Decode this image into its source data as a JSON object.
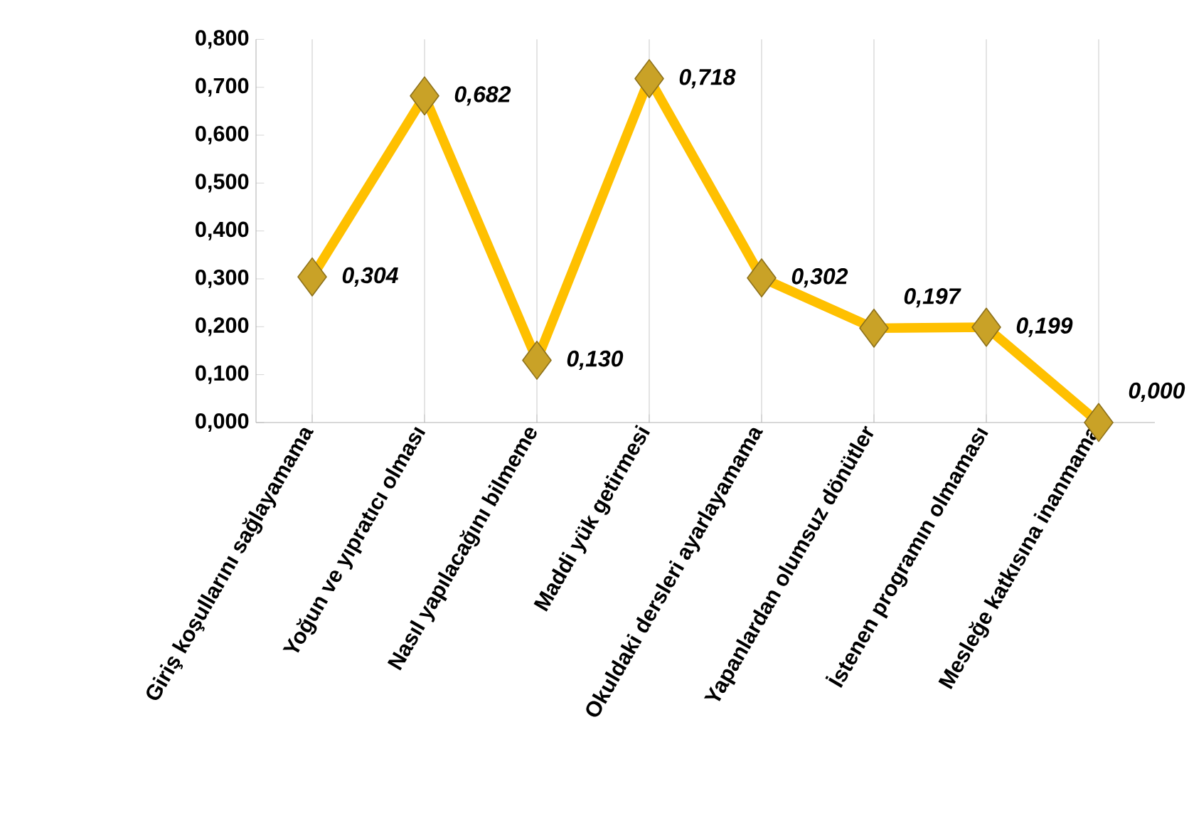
{
  "chart_data": {
    "type": "line",
    "categories": [
      "Giriş koşullarını sağlayamama",
      "Yoğun ve yıpratıcı olması",
      "Nasıl yapılacağını bilmeme",
      "Maddi yük getirmesi",
      "Okuldaki dersleri ayarlayamama",
      "Yapanlardan olumsuz dönütler",
      "İstenen programın olmaması",
      "Mesleğe katkısına inanmama"
    ],
    "values": [
      0.304,
      0.682,
      0.13,
      0.718,
      0.302,
      0.197,
      0.199,
      0.0
    ],
    "value_labels": [
      "0,304",
      "0,682",
      "0,130",
      "0,718",
      "0,302",
      "0,197",
      "0,199",
      "0,000"
    ],
    "color": "#ffc000",
    "marker": "diamond",
    "line_style": "solid",
    "grid": "x",
    "ylim": [
      0,
      0.8
    ],
    "yticks": [
      {
        "value": 0,
        "label": "0,000"
      },
      {
        "value": 0.1,
        "label": "0,100"
      },
      {
        "value": 0.2,
        "label": "0,200"
      },
      {
        "value": 0.3,
        "label": "0,300"
      },
      {
        "value": 0.4,
        "label": "0,400"
      },
      {
        "value": 0.5,
        "label": "0,500"
      },
      {
        "value": 0.6,
        "label": "0,600"
      },
      {
        "value": 0.7,
        "label": "0,700"
      },
      {
        "value": 0.8,
        "label": "0,800"
      }
    ]
  }
}
